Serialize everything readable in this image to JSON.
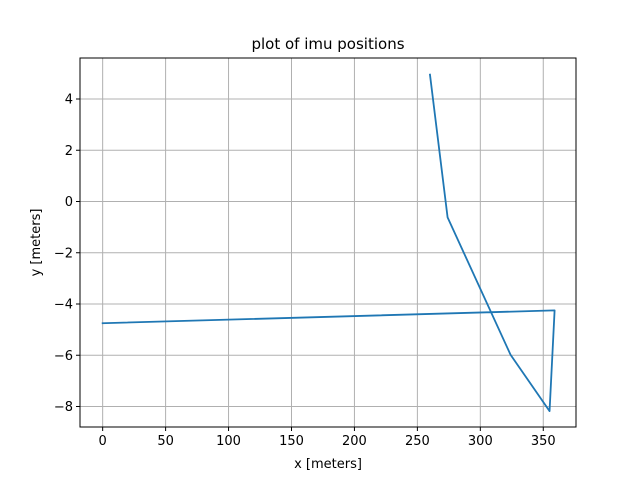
{
  "chart_data": {
    "type": "line",
    "title": "plot of imu positions",
    "xlabel": "x [meters]",
    "ylabel": "y [meters]",
    "xlim": [
      -18,
      376
    ],
    "ylim": [
      -8.8,
      5.6
    ],
    "xticks": [
      0,
      50,
      100,
      150,
      200,
      250,
      300,
      350
    ],
    "yticks": [
      -8,
      -6,
      -4,
      -2,
      0,
      2,
      4
    ],
    "xtick_labels": [
      "0",
      "50",
      "100",
      "150",
      "200",
      "250",
      "300",
      "350"
    ],
    "ytick_labels": [
      "−8",
      "−6",
      "−4",
      "−2",
      "0",
      "2",
      "4"
    ],
    "grid": true,
    "series": [
      {
        "color": "#1f77b4",
        "x": [
          260,
          274,
          324,
          355,
          359,
          0
        ],
        "y": [
          4.95,
          -0.62,
          -5.98,
          -8.18,
          -4.25,
          -4.75
        ]
      }
    ]
  }
}
